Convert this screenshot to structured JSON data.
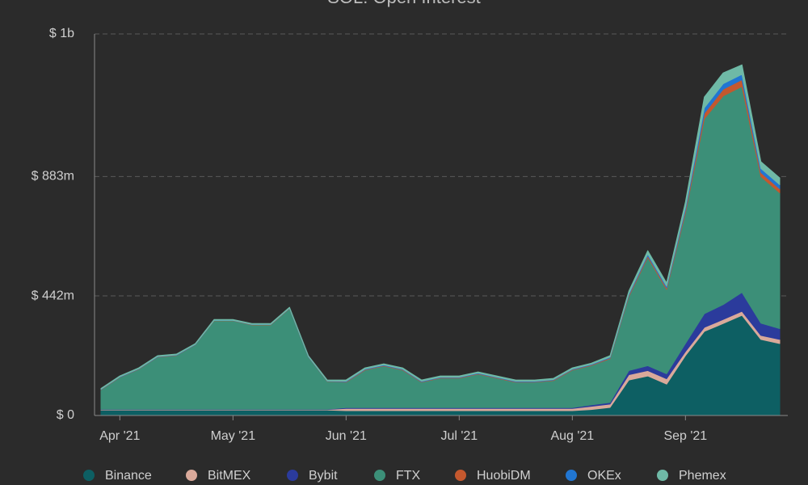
{
  "chart_data": {
    "type": "stacked-area",
    "title": "SOL: Open Interest",
    "categories": [
      null,
      "Apr '21",
      null,
      null,
      null,
      null,
      null,
      "May '21",
      null,
      null,
      null,
      null,
      null,
      "Jun '21",
      null,
      null,
      null,
      null,
      null,
      "Jul '21",
      null,
      null,
      null,
      null,
      null,
      "Aug '21",
      null,
      null,
      null,
      null,
      null,
      "Sep '21",
      null,
      null,
      null,
      null,
      null
    ],
    "ylim": [
      0,
      1410
    ],
    "yticks": [
      {
        "value": 0,
        "label": "$ 0"
      },
      {
        "value": 442,
        "label": "$ 442m"
      },
      {
        "value": 883,
        "label": "$ 883m"
      },
      {
        "value": 1410,
        "label": "$ 1b"
      }
    ],
    "grid": true,
    "legend": "bottom",
    "series": [
      {
        "name": "Binance",
        "color": "#0d5f63",
        "values": [
          20,
          20,
          20,
          20,
          20,
          20,
          20,
          20,
          20,
          20,
          20,
          20,
          20,
          18,
          18,
          18,
          18,
          18,
          18,
          18,
          18,
          18,
          18,
          18,
          18,
          18,
          22,
          30,
          131,
          146,
          116,
          221,
          311,
          340,
          370,
          281,
          266
        ]
      },
      {
        "name": "BitMEX",
        "color": "#d9a99a",
        "values": [
          2,
          2,
          2,
          2,
          2,
          2,
          2,
          2,
          2,
          2,
          2,
          2,
          2,
          8,
          8,
          8,
          8,
          8,
          8,
          8,
          8,
          8,
          8,
          8,
          8,
          8,
          12,
          12,
          20,
          20,
          20,
          15,
          15,
          15,
          15,
          15,
          15
        ]
      },
      {
        "name": "Bybit",
        "color": "#2b3b9c",
        "values": [
          1,
          1,
          1,
          1,
          1,
          1,
          1,
          1,
          1,
          1,
          1,
          1,
          1,
          3,
          3,
          3,
          3,
          3,
          3,
          3,
          3,
          3,
          3,
          3,
          3,
          3,
          5,
          6,
          15,
          18,
          18,
          30,
          50,
          55,
          70,
          45,
          40
        ]
      },
      {
        "name": "FTX",
        "color": "#3c8f78",
        "values": [
          72,
          118,
          148,
          193,
          199,
          238,
          327,
          327,
          312,
          312,
          372,
          193,
          103,
          94,
          139,
          154,
          139,
          94,
          109,
          109,
          124,
          109,
          94,
          94,
          100,
          139,
          146,
          162,
          274,
          401,
          312,
          483,
          721,
          771,
          761,
          542,
          502
        ]
      },
      {
        "name": "HuobiDM",
        "color": "#c4582e",
        "values": [
          1,
          1,
          1,
          1,
          1,
          1,
          1,
          1,
          1,
          1,
          1,
          1,
          1,
          2,
          2,
          2,
          2,
          2,
          2,
          2,
          2,
          2,
          2,
          2,
          2,
          2,
          2,
          3,
          5,
          6,
          6,
          10,
          20,
          25,
          25,
          15,
          15
        ]
      },
      {
        "name": "OKEx",
        "color": "#2176d2",
        "values": [
          1,
          1,
          1,
          1,
          1,
          1,
          1,
          1,
          1,
          1,
          1,
          1,
          1,
          2,
          2,
          2,
          2,
          2,
          2,
          2,
          2,
          2,
          2,
          2,
          2,
          2,
          2,
          3,
          5,
          6,
          6,
          10,
          20,
          20,
          20,
          15,
          15
        ]
      },
      {
        "name": "Phemex",
        "color": "#6fb9a6",
        "values": [
          3,
          3,
          3,
          3,
          3,
          3,
          3,
          3,
          3,
          3,
          3,
          3,
          3,
          4,
          4,
          4,
          4,
          4,
          4,
          4,
          4,
          4,
          4,
          4,
          4,
          4,
          4,
          5,
          10,
          12,
          12,
          20,
          40,
          40,
          35,
          25,
          25
        ]
      }
    ]
  }
}
